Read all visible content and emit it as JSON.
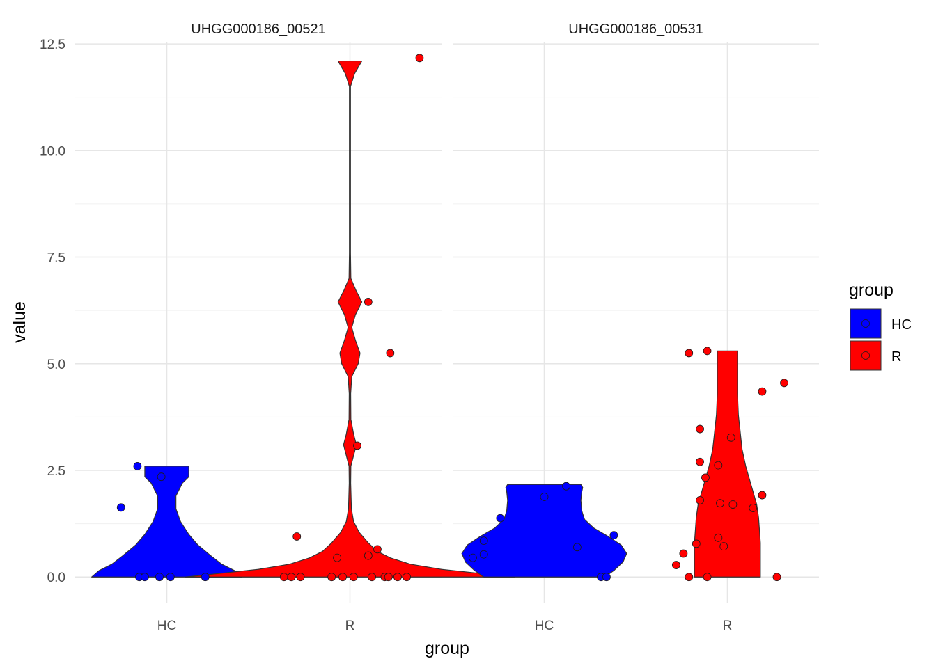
{
  "chart_data": {
    "type": "violin",
    "title": "",
    "xlabel": "group",
    "ylabel": "value",
    "ylim": [
      -0.6,
      12.55
    ],
    "yticks": [
      0.0,
      2.5,
      5.0,
      7.5,
      10.0,
      12.5
    ],
    "ytick_labels": [
      "0.0",
      "2.5",
      "5.0",
      "7.5",
      "10.0",
      "12.5"
    ],
    "categories": [
      "HC",
      "R"
    ],
    "grid": true,
    "colors": {
      "HC": "#0000ff",
      "R": "#ff0000"
    },
    "legend": {
      "title": "group",
      "position": "right",
      "entries": [
        "HC",
        "R"
      ]
    },
    "panels": [
      {
        "title": "UHGG000186_00521",
        "violins": [
          {
            "group": "HC",
            "profile": [
              [
                0.0,
                0.41
              ],
              [
                0.15,
                0.37
              ],
              [
                0.3,
                0.3
              ],
              [
                0.5,
                0.24
              ],
              [
                0.75,
                0.17
              ],
              [
                1.0,
                0.12
              ],
              [
                1.3,
                0.075
              ],
              [
                1.6,
                0.05
              ],
              [
                1.9,
                0.05
              ],
              [
                2.2,
                0.085
              ],
              [
                2.35,
                0.12
              ],
              [
                2.6,
                0.12
              ]
            ]
          },
          {
            "group": "R",
            "profile": [
              [
                0.0,
                0.9
              ],
              [
                0.08,
                0.72
              ],
              [
                0.18,
                0.5
              ],
              [
                0.3,
                0.33
              ],
              [
                0.45,
                0.22
              ],
              [
                0.6,
                0.15
              ],
              [
                0.8,
                0.1
              ],
              [
                1.05,
                0.05
              ],
              [
                1.3,
                0.02
              ],
              [
                1.6,
                0.008
              ],
              [
                2.2,
                0.004
              ],
              [
                2.6,
                0.005
              ],
              [
                2.85,
                0.02
              ],
              [
                3.1,
                0.035
              ],
              [
                3.35,
                0.02
              ],
              [
                3.7,
                0.005
              ],
              [
                4.3,
                0.004
              ],
              [
                4.7,
                0.01
              ],
              [
                5.0,
                0.045
              ],
              [
                5.25,
                0.055
              ],
              [
                5.55,
                0.03
              ],
              [
                5.85,
                0.01
              ],
              [
                6.15,
                0.03
              ],
              [
                6.45,
                0.065
              ],
              [
                6.7,
                0.035
              ],
              [
                7.0,
                0.005
              ],
              [
                7.6,
                0.003
              ],
              [
                11.5,
                0.003
              ],
              [
                11.8,
                0.025
              ],
              [
                12.1,
                0.065
              ]
            ]
          }
        ],
        "points": [
          {
            "group": "HC",
            "jitter": -0.25,
            "value": 1.63
          },
          {
            "group": "HC",
            "jitter": -0.16,
            "value": 2.6
          },
          {
            "group": "HC",
            "jitter": -0.03,
            "value": 2.35
          },
          {
            "group": "HC",
            "jitter": -0.15,
            "value": 0.0
          },
          {
            "group": "HC",
            "jitter": -0.12,
            "value": 0.0
          },
          {
            "group": "HC",
            "jitter": -0.04,
            "value": 0.0
          },
          {
            "group": "HC",
            "jitter": 0.02,
            "value": 0.0
          },
          {
            "group": "HC",
            "jitter": 0.21,
            "value": 0.0
          },
          {
            "group": "R",
            "jitter": -0.29,
            "value": 0.95
          },
          {
            "group": "R",
            "jitter": -0.07,
            "value": 0.45
          },
          {
            "group": "R",
            "jitter": 0.1,
            "value": 0.5
          },
          {
            "group": "R",
            "jitter": 0.15,
            "value": 0.65
          },
          {
            "group": "R",
            "jitter": 0.04,
            "value": 3.08
          },
          {
            "group": "R",
            "jitter": 0.22,
            "value": 5.25
          },
          {
            "group": "R",
            "jitter": 0.1,
            "value": 6.45
          },
          {
            "group": "R",
            "jitter": 0.38,
            "value": 12.17
          },
          {
            "group": "R",
            "jitter": -0.36,
            "value": 0.0
          },
          {
            "group": "R",
            "jitter": -0.32,
            "value": 0.0
          },
          {
            "group": "R",
            "jitter": -0.27,
            "value": 0.0
          },
          {
            "group": "R",
            "jitter": -0.1,
            "value": 0.0
          },
          {
            "group": "R",
            "jitter": -0.04,
            "value": 0.0
          },
          {
            "group": "R",
            "jitter": 0.02,
            "value": 0.0
          },
          {
            "group": "R",
            "jitter": 0.12,
            "value": 0.0
          },
          {
            "group": "R",
            "jitter": 0.19,
            "value": 0.0
          },
          {
            "group": "R",
            "jitter": 0.21,
            "value": 0.0
          },
          {
            "group": "R",
            "jitter": 0.26,
            "value": 0.0
          },
          {
            "group": "R",
            "jitter": 0.31,
            "value": 0.0
          }
        ]
      },
      {
        "title": "UHGG000186_00531",
        "violins": [
          {
            "group": "HC",
            "profile": [
              [
                0.0,
                0.33
              ],
              [
                0.15,
                0.38
              ],
              [
                0.35,
                0.43
              ],
              [
                0.55,
                0.45
              ],
              [
                0.75,
                0.42
              ],
              [
                0.95,
                0.35
              ],
              [
                1.15,
                0.27
              ],
              [
                1.35,
                0.22
              ],
              [
                1.55,
                0.205
              ],
              [
                1.8,
                0.2
              ],
              [
                2.0,
                0.205
              ],
              [
                2.1,
                0.21
              ],
              [
                2.17,
                0.2
              ]
            ]
          },
          {
            "group": "R",
            "profile": [
              [
                0.0,
                0.18
              ],
              [
                0.25,
                0.18
              ],
              [
                0.5,
                0.18
              ],
              [
                0.8,
                0.18
              ],
              [
                1.1,
                0.175
              ],
              [
                1.4,
                0.17
              ],
              [
                1.7,
                0.16
              ],
              [
                2.0,
                0.14
              ],
              [
                2.3,
                0.12
              ],
              [
                2.6,
                0.1
              ],
              [
                3.0,
                0.08
              ],
              [
                3.4,
                0.07
              ],
              [
                3.8,
                0.06
              ],
              [
                4.3,
                0.055
              ],
              [
                4.8,
                0.055
              ],
              [
                5.3,
                0.055
              ]
            ]
          }
        ],
        "points": [
          {
            "group": "HC",
            "jitter": -0.39,
            "value": 0.45
          },
          {
            "group": "HC",
            "jitter": -0.33,
            "value": 0.53
          },
          {
            "group": "HC",
            "jitter": -0.33,
            "value": 0.85
          },
          {
            "group": "HC",
            "jitter": -0.24,
            "value": 1.38
          },
          {
            "group": "HC",
            "jitter": 0.0,
            "value": 1.88
          },
          {
            "group": "HC",
            "jitter": 0.12,
            "value": 2.13
          },
          {
            "group": "HC",
            "jitter": 0.18,
            "value": 0.7
          },
          {
            "group": "HC",
            "jitter": 0.31,
            "value": 0.0
          },
          {
            "group": "HC",
            "jitter": 0.34,
            "value": 0.0
          },
          {
            "group": "HC",
            "jitter": 0.38,
            "value": 0.98
          },
          {
            "group": "R",
            "jitter": -0.28,
            "value": 0.28
          },
          {
            "group": "R",
            "jitter": -0.24,
            "value": 0.55
          },
          {
            "group": "R",
            "jitter": -0.21,
            "value": 0.0
          },
          {
            "group": "R",
            "jitter": -0.21,
            "value": 5.25
          },
          {
            "group": "R",
            "jitter": -0.17,
            "value": 0.78
          },
          {
            "group": "R",
            "jitter": -0.15,
            "value": 1.8
          },
          {
            "group": "R",
            "jitter": -0.15,
            "value": 2.7
          },
          {
            "group": "R",
            "jitter": -0.15,
            "value": 3.47
          },
          {
            "group": "R",
            "jitter": -0.12,
            "value": 2.33
          },
          {
            "group": "R",
            "jitter": -0.11,
            "value": 5.3
          },
          {
            "group": "R",
            "jitter": -0.11,
            "value": 0.0
          },
          {
            "group": "R",
            "jitter": -0.05,
            "value": 2.62
          },
          {
            "group": "R",
            "jitter": -0.05,
            "value": 0.92
          },
          {
            "group": "R",
            "jitter": -0.04,
            "value": 1.73
          },
          {
            "group": "R",
            "jitter": -0.02,
            "value": 0.72
          },
          {
            "group": "R",
            "jitter": 0.02,
            "value": 3.27
          },
          {
            "group": "R",
            "jitter": 0.03,
            "value": 1.7
          },
          {
            "group": "R",
            "jitter": 0.14,
            "value": 1.62
          },
          {
            "group": "R",
            "jitter": 0.19,
            "value": 1.92
          },
          {
            "group": "R",
            "jitter": 0.19,
            "value": 4.35
          },
          {
            "group": "R",
            "jitter": 0.27,
            "value": 0.0
          },
          {
            "group": "R",
            "jitter": 0.31,
            "value": 4.55
          }
        ]
      }
    ]
  }
}
